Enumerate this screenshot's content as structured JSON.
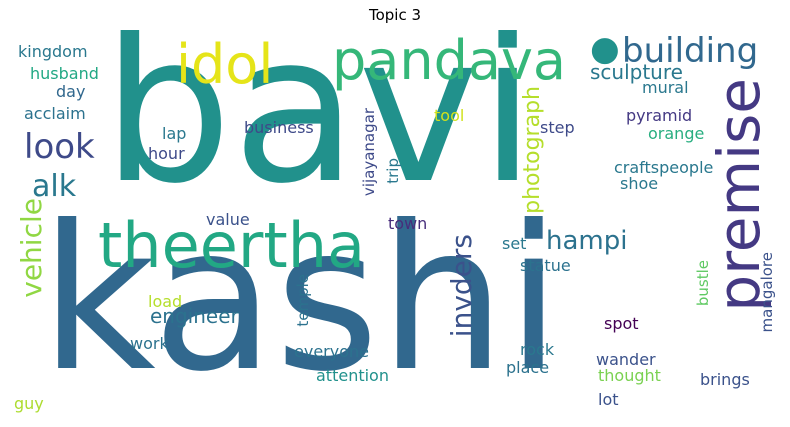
{
  "title": "Topic 3",
  "words": [
    {
      "id": "bavi",
      "text": "bavi",
      "color": "#21918c"
    },
    {
      "id": "kashi",
      "text": "kashi",
      "color": "#31688e"
    },
    {
      "id": "theertha",
      "text": "theertha",
      "color": "#22a884"
    },
    {
      "id": "pandava",
      "text": "pandava",
      "color": "#35b779"
    },
    {
      "id": "idol",
      "text": "idol",
      "color": "#e5e419"
    },
    {
      "id": "premise",
      "text": "premise",
      "color": "#443983"
    },
    {
      "id": "building",
      "text": "building",
      "color": "#31688e"
    },
    {
      "id": "dot",
      "text": "●",
      "color": "#21918c"
    },
    {
      "id": "look",
      "text": "look",
      "color": "#3e4a89"
    },
    {
      "id": "alk",
      "text": "alk",
      "color": "#2a788e"
    },
    {
      "id": "sculpture",
      "text": "sculpture",
      "color": "#2a788e"
    },
    {
      "id": "hampi",
      "text": "hampi",
      "color": "#2c728e"
    },
    {
      "id": "vehicle",
      "text": "vehicle",
      "color": "#90d743"
    },
    {
      "id": "invders",
      "text": "invders",
      "color": "#3b528b"
    },
    {
      "id": "engineer",
      "text": "engineer",
      "color": "#2c728e"
    },
    {
      "id": "photograph",
      "text": "photograph",
      "color": "#b5de2b"
    },
    {
      "id": "kingdom",
      "text": "kingdom",
      "color": "#2a788e"
    },
    {
      "id": "husband",
      "text": "husband",
      "color": "#22a884"
    },
    {
      "id": "day",
      "text": "day",
      "color": "#31688e"
    },
    {
      "id": "acclaim",
      "text": "acclaim",
      "color": "#2c728e"
    },
    {
      "id": "mural",
      "text": "mural",
      "color": "#2a788e"
    },
    {
      "id": "pyramid",
      "text": "pyramid",
      "color": "#443983"
    },
    {
      "id": "tool",
      "text": "tool",
      "color": "#d0e11c"
    },
    {
      "id": "step",
      "text": "step",
      "color": "#3e4a89"
    },
    {
      "id": "orange",
      "text": "orange",
      "color": "#28ae80"
    },
    {
      "id": "lap",
      "text": "lap",
      "color": "#2a788e"
    },
    {
      "id": "business",
      "text": "business",
      "color": "#3e4a89"
    },
    {
      "id": "hour",
      "text": "hour",
      "color": "#3e4a89"
    },
    {
      "id": "vijayanagar",
      "text": "vijayanagar",
      "color": "#3e4a89"
    },
    {
      "id": "trip",
      "text": "trip",
      "color": "#2a788e"
    },
    {
      "id": "craftspeople",
      "text": "craftspeople",
      "color": "#2a788e"
    },
    {
      "id": "shoe",
      "text": "shoe",
      "color": "#2a788e"
    },
    {
      "id": "value",
      "text": "value",
      "color": "#3b528b"
    },
    {
      "id": "town",
      "text": "town",
      "color": "#472d7b"
    },
    {
      "id": "set",
      "text": "set",
      "color": "#2a788e"
    },
    {
      "id": "statue",
      "text": "statue",
      "color": "#2c728e"
    },
    {
      "id": "load",
      "text": "load",
      "color": "#b5de2b"
    },
    {
      "id": "temple",
      "text": "temple",
      "color": "#2c728e"
    },
    {
      "id": "bustle",
      "text": "bustle",
      "color": "#5ec962"
    },
    {
      "id": "mangalore",
      "text": "mangalore",
      "color": "#3b528b"
    },
    {
      "id": "work",
      "text": "work",
      "color": "#2c728e"
    },
    {
      "id": "spot",
      "text": "spot",
      "color": "#440154"
    },
    {
      "id": "everyone",
      "text": "everyone",
      "color": "#2c728e"
    },
    {
      "id": "rock",
      "text": "rock",
      "color": "#2a788e"
    },
    {
      "id": "wander",
      "text": "wander",
      "color": "#3b528b"
    },
    {
      "id": "place",
      "text": "place",
      "color": "#2c728e"
    },
    {
      "id": "thought",
      "text": "thought",
      "color": "#7ad151"
    },
    {
      "id": "attention",
      "text": "attention",
      "color": "#21918c"
    },
    {
      "id": "brings",
      "text": "brings",
      "color": "#3b528b"
    },
    {
      "id": "guy",
      "text": "guy",
      "color": "#addc30"
    },
    {
      "id": "lot",
      "text": "lot",
      "color": "#3b528b"
    }
  ]
}
